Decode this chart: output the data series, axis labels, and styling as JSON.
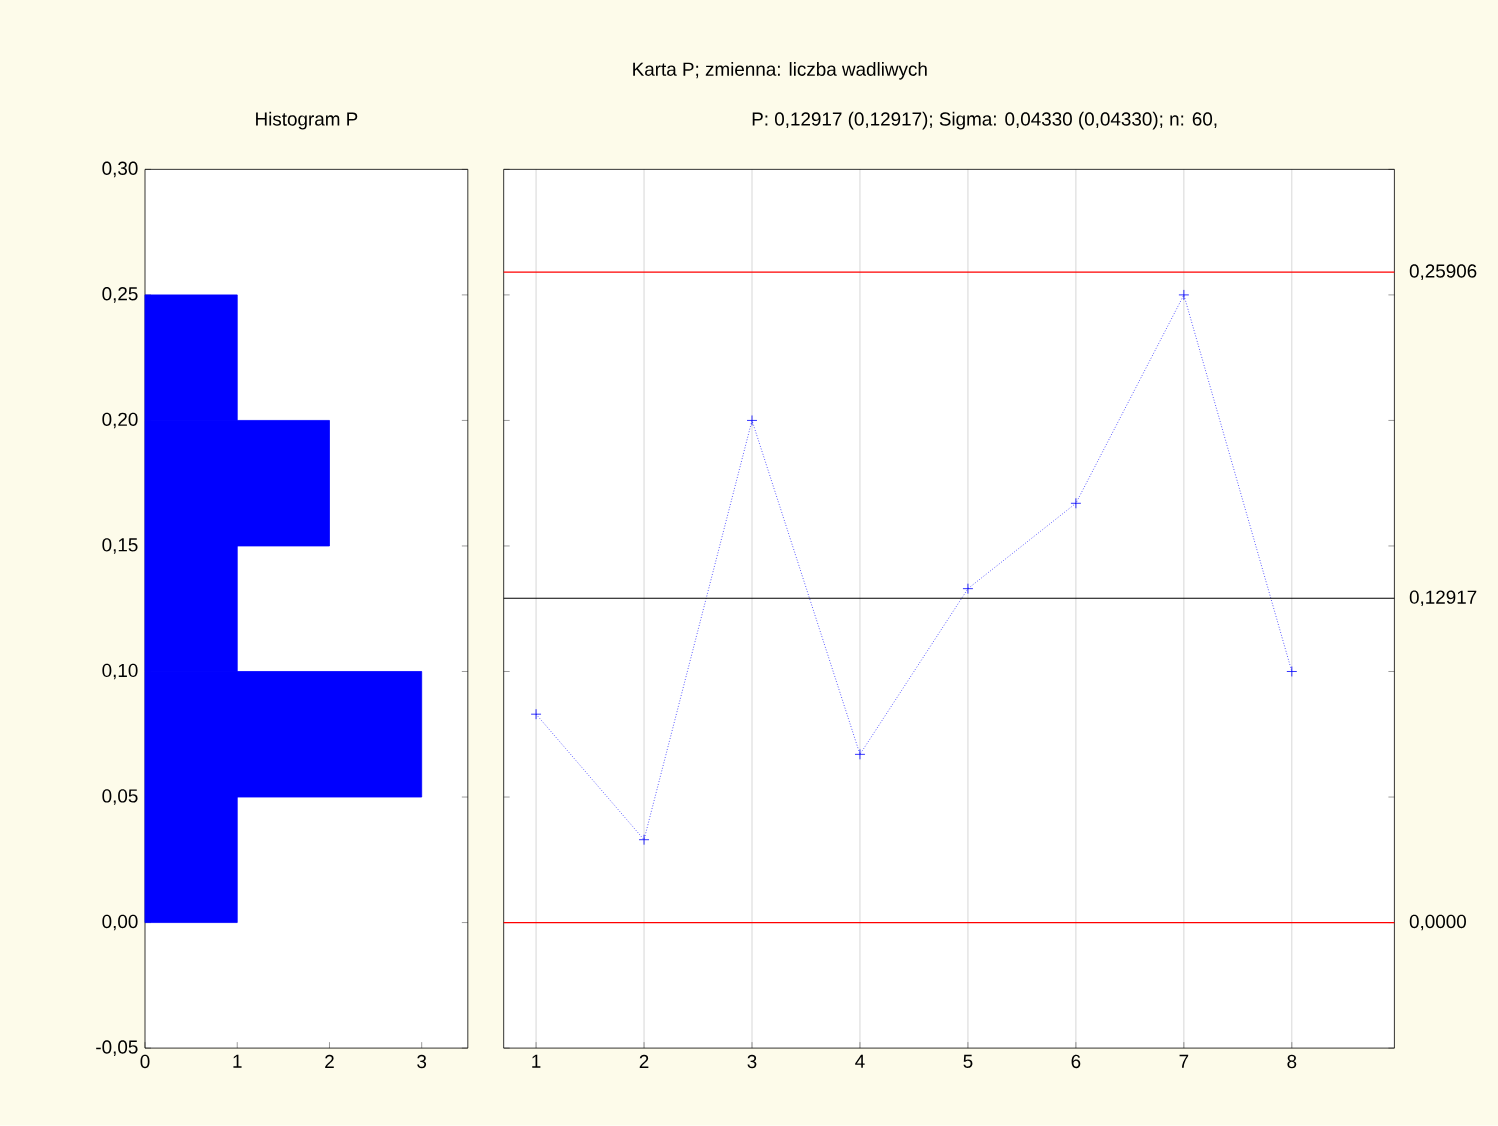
{
  "chart_data": [
    {
      "type": "histogram",
      "orientation": "horizontal",
      "title": "Histogram P",
      "bins": [
        0,
        0.05,
        0.1,
        0.15,
        0.2,
        0.25
      ],
      "values": [
        1,
        3,
        1,
        2,
        1
      ],
      "color": "#0000ff",
      "xlim": [
        0,
        3.5
      ],
      "xticks": [
        0,
        1,
        2,
        3
      ],
      "ylim": [
        -0.05,
        0.3
      ],
      "yticks": [
        {
          "value": -0.05,
          "label": "-0,05"
        },
        {
          "value": 0,
          "label": "0,00"
        },
        {
          "value": 0.05,
          "label": "0,05"
        },
        {
          "value": 0.1,
          "label": "0,10"
        },
        {
          "value": 0.15,
          "label": "0,15"
        },
        {
          "value": 0.2,
          "label": "0,20"
        },
        {
          "value": 0.25,
          "label": "0,25"
        },
        {
          "value": 0.3,
          "label": "0,30"
        }
      ]
    },
    {
      "type": "line",
      "title": "Karta P; zmienna:  liczba wadliwych",
      "subtitle": "P: 0,12917 (0,12917); Sigma: 0,04330 (0,04330); n: 60,",
      "x": [
        1,
        2,
        3,
        4,
        5,
        6,
        7,
        8
      ],
      "values": [
        0.083,
        0.033,
        0.2,
        0.067,
        0.133,
        0.167,
        0.25,
        0.1
      ],
      "color": "#0000ff",
      "marker": "cross",
      "line_style": "dotted",
      "xlim": [
        0.7,
        8.95
      ],
      "xticks": [
        1,
        2,
        3,
        4,
        5,
        6,
        7,
        8
      ],
      "ylim": [
        -0.05,
        0.3
      ],
      "yticks": [
        {
          "value": -0.05,
          "label": null
        },
        {
          "value": 0,
          "label": null
        },
        {
          "value": 0.05,
          "label": null
        },
        {
          "value": 0.1,
          "label": null
        },
        {
          "value": 0.15,
          "label": null
        },
        {
          "value": 0.2,
          "label": null
        },
        {
          "value": 0.25,
          "label": null
        },
        {
          "value": 0.3,
          "label": null
        }
      ],
      "tick_labels": "x",
      "grid": "x",
      "ref_lines": [
        {
          "axis": "y",
          "value": 0.25906,
          "label": "0,25906",
          "color": "#ff0000"
        },
        {
          "axis": "y",
          "value": 0.12917,
          "label": "0,12917",
          "color": "#000000"
        },
        {
          "axis": "y",
          "value": 0,
          "label": "0,0000",
          "color": "#ff0000"
        }
      ]
    }
  ]
}
